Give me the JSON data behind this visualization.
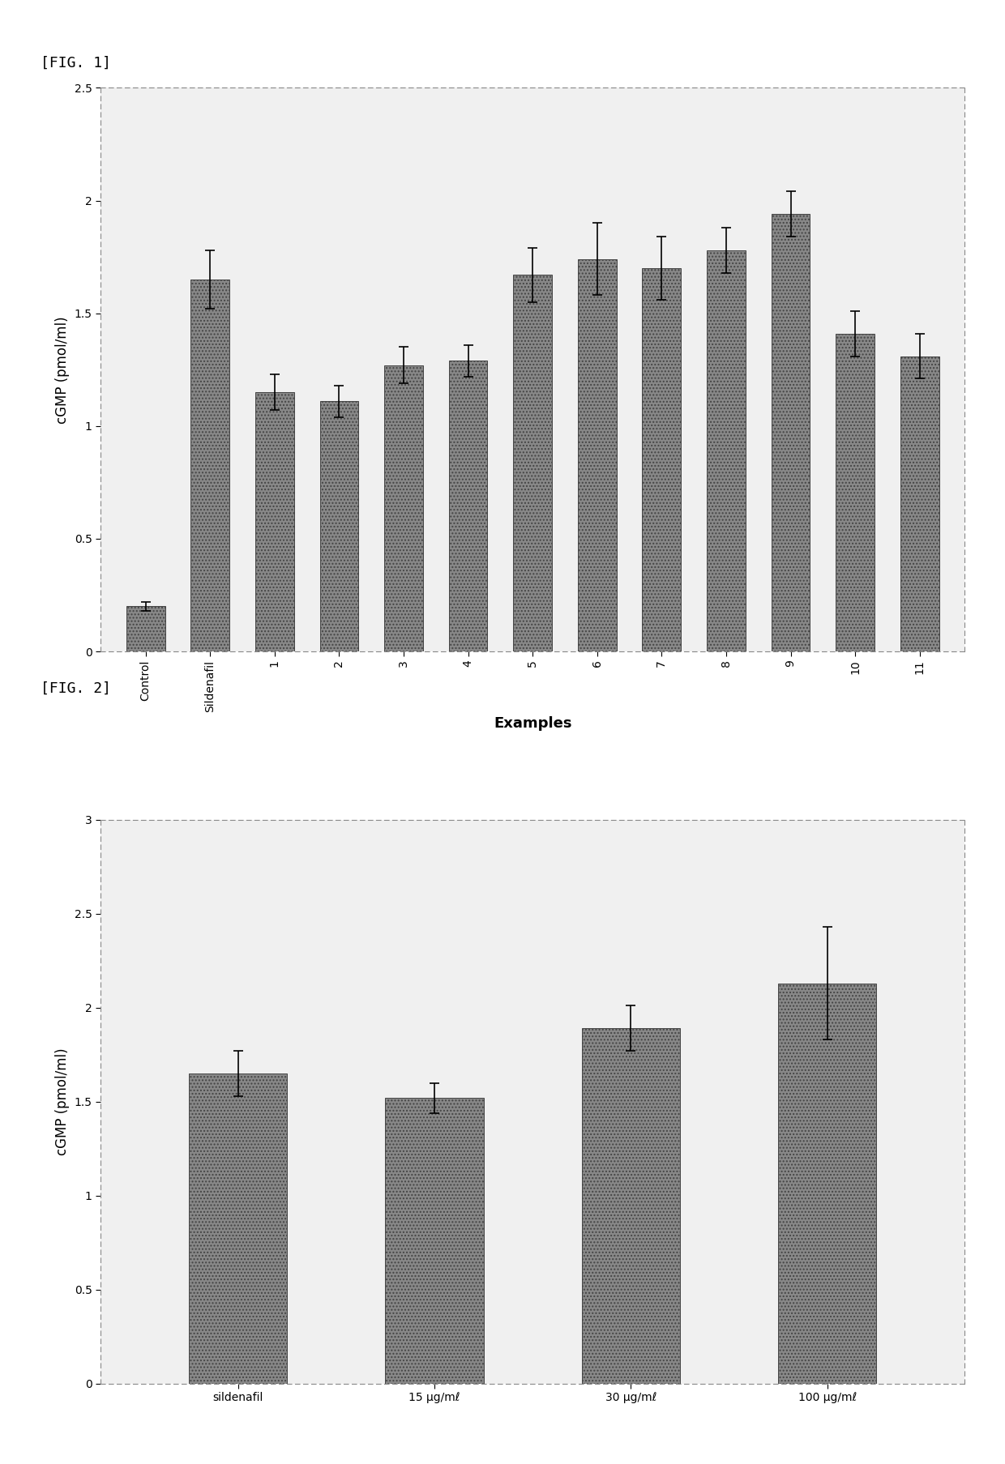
{
  "fig1": {
    "categories": [
      "Control",
      "Sildenafil",
      "1",
      "2",
      "3",
      "4",
      "5",
      "6",
      "7",
      "8",
      "9",
      "10",
      "11"
    ],
    "values": [
      0.2,
      1.65,
      1.15,
      1.11,
      1.27,
      1.29,
      1.67,
      1.74,
      1.7,
      1.78,
      1.94,
      1.41,
      1.31
    ],
    "errors": [
      0.02,
      0.13,
      0.08,
      0.07,
      0.08,
      0.07,
      0.12,
      0.16,
      0.14,
      0.1,
      0.1,
      0.1,
      0.1
    ],
    "ylabel": "cGMP (pmol/ml)",
    "xlabel": "Examples",
    "ylim": [
      0,
      2.5
    ],
    "yticks": [
      0,
      0.5,
      1.0,
      1.5,
      2.0,
      2.5
    ],
    "bar_color": "#888888",
    "bar_edge_color": "#444444",
    "bar_hatch": "....",
    "title_label": "[FIG. 1]"
  },
  "fig2": {
    "categories": [
      "sildenafil",
      "15 μg/mℓ",
      "30 μg/mℓ",
      "100 μg/mℓ"
    ],
    "values": [
      1.65,
      1.52,
      1.89,
      2.13
    ],
    "errors": [
      0.12,
      0.08,
      0.12,
      0.3
    ],
    "ylabel": "cGMP (pmol/ml)",
    "xlabel": "",
    "ylim": [
      0,
      3.0
    ],
    "yticks": [
      0,
      0.5,
      1.0,
      1.5,
      2.0,
      2.5,
      3.0
    ],
    "bar_color": "#888888",
    "bar_edge_color": "#444444",
    "bar_hatch": "....",
    "title_label": "[FIG. 2]"
  },
  "background_color": "#ffffff",
  "text_color": "#000000",
  "fig_label_fontsize": 13,
  "axis_label_fontsize": 12,
  "tick_label_fontsize": 10,
  "spine_color": "#888888"
}
